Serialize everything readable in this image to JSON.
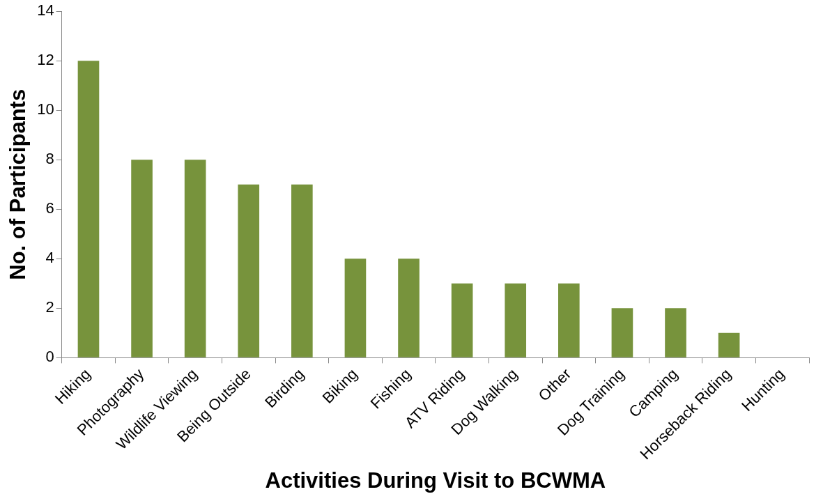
{
  "chart_data": {
    "type": "bar",
    "xlabel": "Activities During Visit to BCWMA",
    "ylabel": "No. of Participants",
    "categories": [
      "Hiking",
      "Photography",
      "Wildlife Viewing",
      "Being Outside",
      "Birding",
      "Biking",
      "Fishing",
      "ATV Riding",
      "Dog Walking",
      "Other",
      "Dog Training",
      "Camping",
      "Horseback Riding",
      "Hunting"
    ],
    "values": [
      12,
      8,
      8,
      7,
      7,
      4,
      4,
      3,
      3,
      3,
      2,
      2,
      1,
      0
    ],
    "color": "#77933c",
    "ylim": [
      0,
      14
    ],
    "yticks": [
      0,
      2,
      4,
      6,
      8,
      10,
      12,
      14
    ],
    "grid": false,
    "legend": false
  }
}
